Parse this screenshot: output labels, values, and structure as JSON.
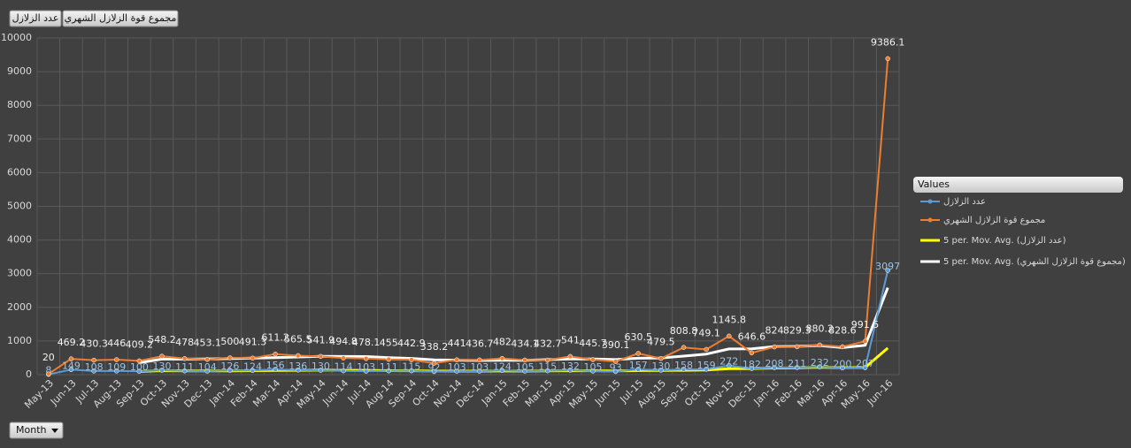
{
  "chart_data": {
    "type": "line",
    "x_label": "Month",
    "legend_title": "Values",
    "legend": "right",
    "grid": true,
    "categories": [
      "May-13",
      "Jun-13",
      "Jul-13",
      "Aug-13",
      "Sep-13",
      "Oct-13",
      "Nov-13",
      "Dec-13",
      "Jan-14",
      "Feb-14",
      "Mar-14",
      "Apr-14",
      "May-14",
      "Jun-14",
      "Jul-14",
      "Aug-14",
      "Sep-14",
      "Oct-14",
      "Nov-14",
      "Dec-14",
      "Jan-15",
      "Feb-15",
      "Mar-15",
      "Apr-15",
      "May-15",
      "Jun-15",
      "Jul-15",
      "Aug-15",
      "Sep-15",
      "Oct-15",
      "Nov-15",
      "Dec-15",
      "Jan-16",
      "Feb-16",
      "Mar-16",
      "Apr-16",
      "May-16",
      "Jun-16"
    ],
    "ylim": [
      0,
      10000
    ],
    "yticks": [
      0,
      1000,
      2000,
      3000,
      4000,
      5000,
      6000,
      7000,
      8000,
      9000,
      10000
    ],
    "series": [
      {
        "name": "عدد الزلازل",
        "color": "#5b9bd5",
        "markers": true,
        "labels": true,
        "values": [
          8,
          149,
          108,
          109,
          100,
          130,
          111,
          104,
          126,
          124,
          156,
          136,
          130,
          114,
          103,
          111,
          115,
          92,
          103,
          103,
          124,
          105,
          115,
          132,
          105,
          93,
          157,
          130,
          158,
          159,
          272,
          182,
          208,
          211,
          232,
          200,
          207,
          3097
        ]
      },
      {
        "name": "مجموع قوة الزلازل الشهري",
        "color": "#ed7d31",
        "markers": true,
        "labels": true,
        "values": [
          20,
          469.2,
          430.3,
          446,
          409.2,
          548.2,
          478,
          453.1,
          500,
          491.3,
          611.2,
          565.5,
          541.9,
          494.8,
          478.1,
          455,
          442.9,
          338.2,
          441,
          436.7,
          482,
          434.1,
          432.7,
          541,
          445.7,
          390.1,
          630.5,
          479.5,
          808.8,
          749.1,
          1145.8,
          646.6,
          824,
          829.3,
          880.2,
          828.6,
          991.5,
          9386.1
        ]
      },
      {
        "name": "5 per. Mov. Avg. (عدد الزلازل)",
        "color": "#ffff00",
        "markers": false,
        "labels": false,
        "values": [
          null,
          null,
          null,
          null,
          95,
          119,
          112,
          111,
          114,
          119,
          124,
          129,
          134,
          132,
          128,
          119,
          115,
          107,
          105,
          105,
          107,
          105,
          110,
          116,
          116,
          110,
          120,
          123,
          129,
          139,
          175,
          180,
          196,
          206,
          221,
          207,
          212,
          789
        ]
      },
      {
        "name": "5 per. Mov. Avg. (مجموع قوة الزلازل الشهري)",
        "color": "#ffffff",
        "markers": false,
        "labels": false,
        "values": [
          null,
          null,
          null,
          null,
          355,
          461,
          462,
          467,
          478,
          494,
          507,
          524,
          542,
          541,
          538,
          507,
          483,
          442,
          431,
          423,
          428,
          426,
          445,
          465,
          467,
          449,
          488,
          497,
          551,
          612,
          763,
          766,
          835,
          839,
          865,
          802,
          871,
          2583
        ]
      }
    ]
  }
}
